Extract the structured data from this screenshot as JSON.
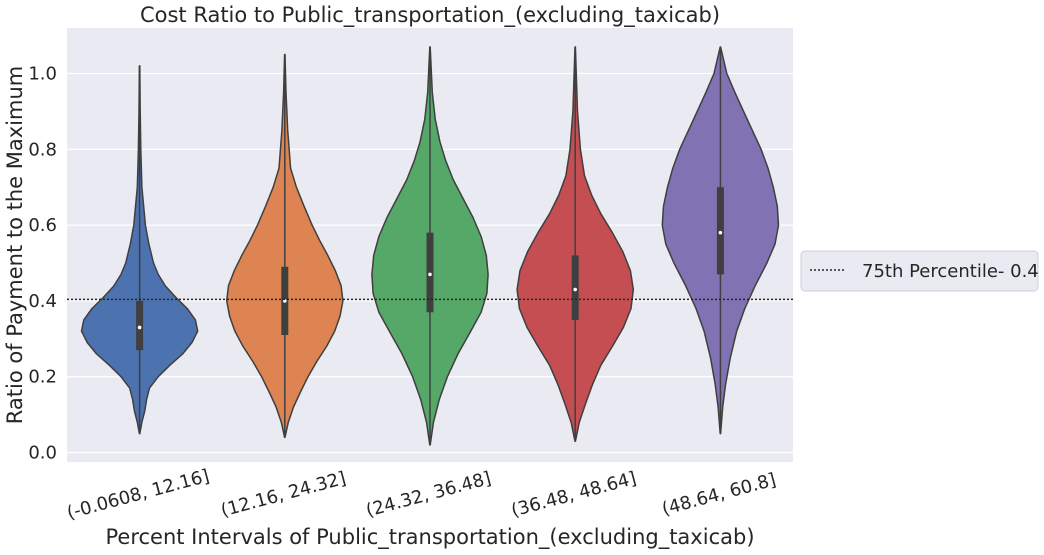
{
  "chart_data": {
    "type": "violin",
    "title": "Cost Ratio to Public_transportation_(excluding_taxicab)",
    "xlabel": "Percent Intervals of Public_transportation_(excluding_taxicab)",
    "ylabel": "Ratio of Payment to the Maximum",
    "ylim": [
      -0.025,
      1.12
    ],
    "yticks": [
      "0.0",
      "0.2",
      "0.4",
      "0.6",
      "0.8",
      "1.0"
    ],
    "grid": true,
    "legend_position": "center-right",
    "categories": [
      "(-0.0608, 12.16]",
      "(12.16, 24.32]",
      "(24.32, 36.48]",
      "(36.48, 48.64]",
      "(48.64, 60.8]"
    ],
    "colors": [
      "#4c72b0",
      "#dd8452",
      "#55a868",
      "#c44e52",
      "#8172b3"
    ],
    "violins": [
      {
        "min": 0.05,
        "max": 1.02,
        "q1": 0.27,
        "median": 0.33,
        "q3": 0.4,
        "profile": [
          [
            0.05,
            0.003
          ],
          [
            0.08,
            0.04
          ],
          [
            0.11,
            0.09
          ],
          [
            0.14,
            0.12
          ],
          [
            0.17,
            0.17
          ],
          [
            0.2,
            0.32
          ],
          [
            0.23,
            0.52
          ],
          [
            0.26,
            0.74
          ],
          [
            0.29,
            0.9
          ],
          [
            0.32,
            1.0
          ],
          [
            0.35,
            0.96
          ],
          [
            0.38,
            0.82
          ],
          [
            0.41,
            0.62
          ],
          [
            0.44,
            0.44
          ],
          [
            0.47,
            0.32
          ],
          [
            0.5,
            0.24
          ],
          [
            0.55,
            0.16
          ],
          [
            0.6,
            0.1
          ],
          [
            0.7,
            0.04
          ],
          [
            0.8,
            0.02
          ],
          [
            0.9,
            0.01
          ],
          [
            1.02,
            0.003
          ]
        ]
      },
      {
        "min": 0.04,
        "max": 1.05,
        "q1": 0.31,
        "median": 0.4,
        "q3": 0.49,
        "profile": [
          [
            0.04,
            0.003
          ],
          [
            0.08,
            0.06
          ],
          [
            0.12,
            0.15
          ],
          [
            0.16,
            0.27
          ],
          [
            0.2,
            0.4
          ],
          [
            0.24,
            0.55
          ],
          [
            0.28,
            0.72
          ],
          [
            0.32,
            0.86
          ],
          [
            0.36,
            0.95
          ],
          [
            0.4,
            1.0
          ],
          [
            0.44,
            0.97
          ],
          [
            0.48,
            0.87
          ],
          [
            0.52,
            0.74
          ],
          [
            0.56,
            0.6
          ],
          [
            0.6,
            0.47
          ],
          [
            0.65,
            0.33
          ],
          [
            0.7,
            0.2
          ],
          [
            0.75,
            0.1
          ],
          [
            0.85,
            0.05
          ],
          [
            0.95,
            0.02
          ],
          [
            1.05,
            0.003
          ]
        ]
      },
      {
        "min": 0.02,
        "max": 1.07,
        "q1": 0.37,
        "median": 0.47,
        "q3": 0.58,
        "profile": [
          [
            0.02,
            0.003
          ],
          [
            0.08,
            0.06
          ],
          [
            0.14,
            0.16
          ],
          [
            0.2,
            0.3
          ],
          [
            0.26,
            0.48
          ],
          [
            0.32,
            0.7
          ],
          [
            0.37,
            0.88
          ],
          [
            0.42,
            0.98
          ],
          [
            0.47,
            1.0
          ],
          [
            0.52,
            0.97
          ],
          [
            0.57,
            0.88
          ],
          [
            0.62,
            0.74
          ],
          [
            0.67,
            0.57
          ],
          [
            0.72,
            0.4
          ],
          [
            0.77,
            0.27
          ],
          [
            0.82,
            0.17
          ],
          [
            0.88,
            0.09
          ],
          [
            0.95,
            0.04
          ],
          [
            1.07,
            0.003
          ]
        ]
      },
      {
        "min": 0.03,
        "max": 1.07,
        "q1": 0.35,
        "median": 0.43,
        "q3": 0.52,
        "profile": [
          [
            0.03,
            0.003
          ],
          [
            0.08,
            0.07
          ],
          [
            0.13,
            0.18
          ],
          [
            0.18,
            0.3
          ],
          [
            0.23,
            0.44
          ],
          [
            0.28,
            0.64
          ],
          [
            0.33,
            0.83
          ],
          [
            0.38,
            0.96
          ],
          [
            0.43,
            1.0
          ],
          [
            0.48,
            0.95
          ],
          [
            0.53,
            0.82
          ],
          [
            0.58,
            0.64
          ],
          [
            0.63,
            0.44
          ],
          [
            0.68,
            0.28
          ],
          [
            0.73,
            0.16
          ],
          [
            0.8,
            0.09
          ],
          [
            0.9,
            0.04
          ],
          [
            1.07,
            0.003
          ]
        ]
      },
      {
        "min": 0.05,
        "max": 1.07,
        "q1": 0.47,
        "median": 0.58,
        "q3": 0.7,
        "profile": [
          [
            0.05,
            0.003
          ],
          [
            0.12,
            0.04
          ],
          [
            0.18,
            0.09
          ],
          [
            0.25,
            0.17
          ],
          [
            0.32,
            0.28
          ],
          [
            0.38,
            0.42
          ],
          [
            0.44,
            0.6
          ],
          [
            0.5,
            0.8
          ],
          [
            0.55,
            0.94
          ],
          [
            0.6,
            1.0
          ],
          [
            0.65,
            0.98
          ],
          [
            0.7,
            0.91
          ],
          [
            0.75,
            0.82
          ],
          [
            0.8,
            0.7
          ],
          [
            0.85,
            0.55
          ],
          [
            0.9,
            0.4
          ],
          [
            0.95,
            0.25
          ],
          [
            1.0,
            0.11
          ],
          [
            1.07,
            0.003
          ]
        ]
      }
    ],
    "reference_line": {
      "value": 0.404,
      "label": "75th Percentile- 0.4",
      "style": "dotted",
      "color": "#262626"
    }
  }
}
